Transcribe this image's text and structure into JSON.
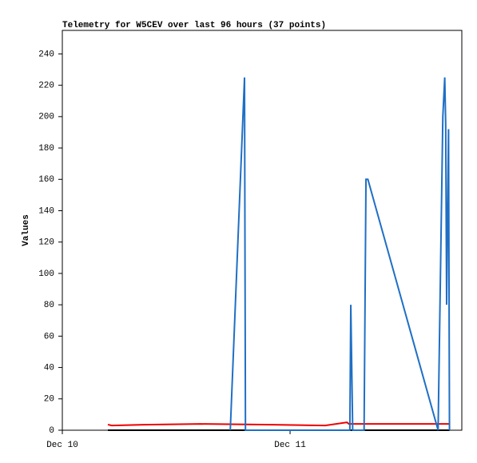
{
  "chart_data": {
    "type": "line",
    "title": "Telemetry for W5CEV over last 96 hours (37 points)",
    "ylabel": "Values",
    "xlim": [
      0,
      42.1
    ],
    "xticks": [
      {
        "value": 0,
        "label": "Dec 10"
      },
      {
        "value": 24,
        "label": "Dec 11"
      }
    ],
    "ylim": [
      0,
      255
    ],
    "yticks": [
      0,
      20,
      40,
      60,
      80,
      100,
      120,
      140,
      160,
      180,
      200,
      220,
      240
    ],
    "grid": false,
    "series": [
      {
        "color": "#000000",
        "x": [
          4.8,
          40.8
        ],
        "values": [
          0,
          0
        ]
      },
      {
        "color": "#ee0000",
        "x": [
          4.8,
          5.2,
          8.6,
          14.6,
          22.2,
          27.7,
          30.0,
          30.2,
          40.8
        ],
        "values": [
          3.6,
          3,
          3.5,
          4,
          3.5,
          3,
          5,
          4,
          4
        ]
      },
      {
        "color": "#1f6fc5",
        "x": [
          17.7,
          19.2,
          19.3,
          30.3,
          30.4,
          30.6,
          31.8,
          32.0,
          32.2,
          39.6,
          40.1,
          40.3,
          40.4,
          40.5,
          40.7,
          40.8
        ],
        "values": [
          0,
          225,
          0,
          0,
          80,
          0,
          0,
          160,
          160,
          0,
          200,
          225,
          195,
          80,
          192,
          0
        ]
      }
    ]
  }
}
